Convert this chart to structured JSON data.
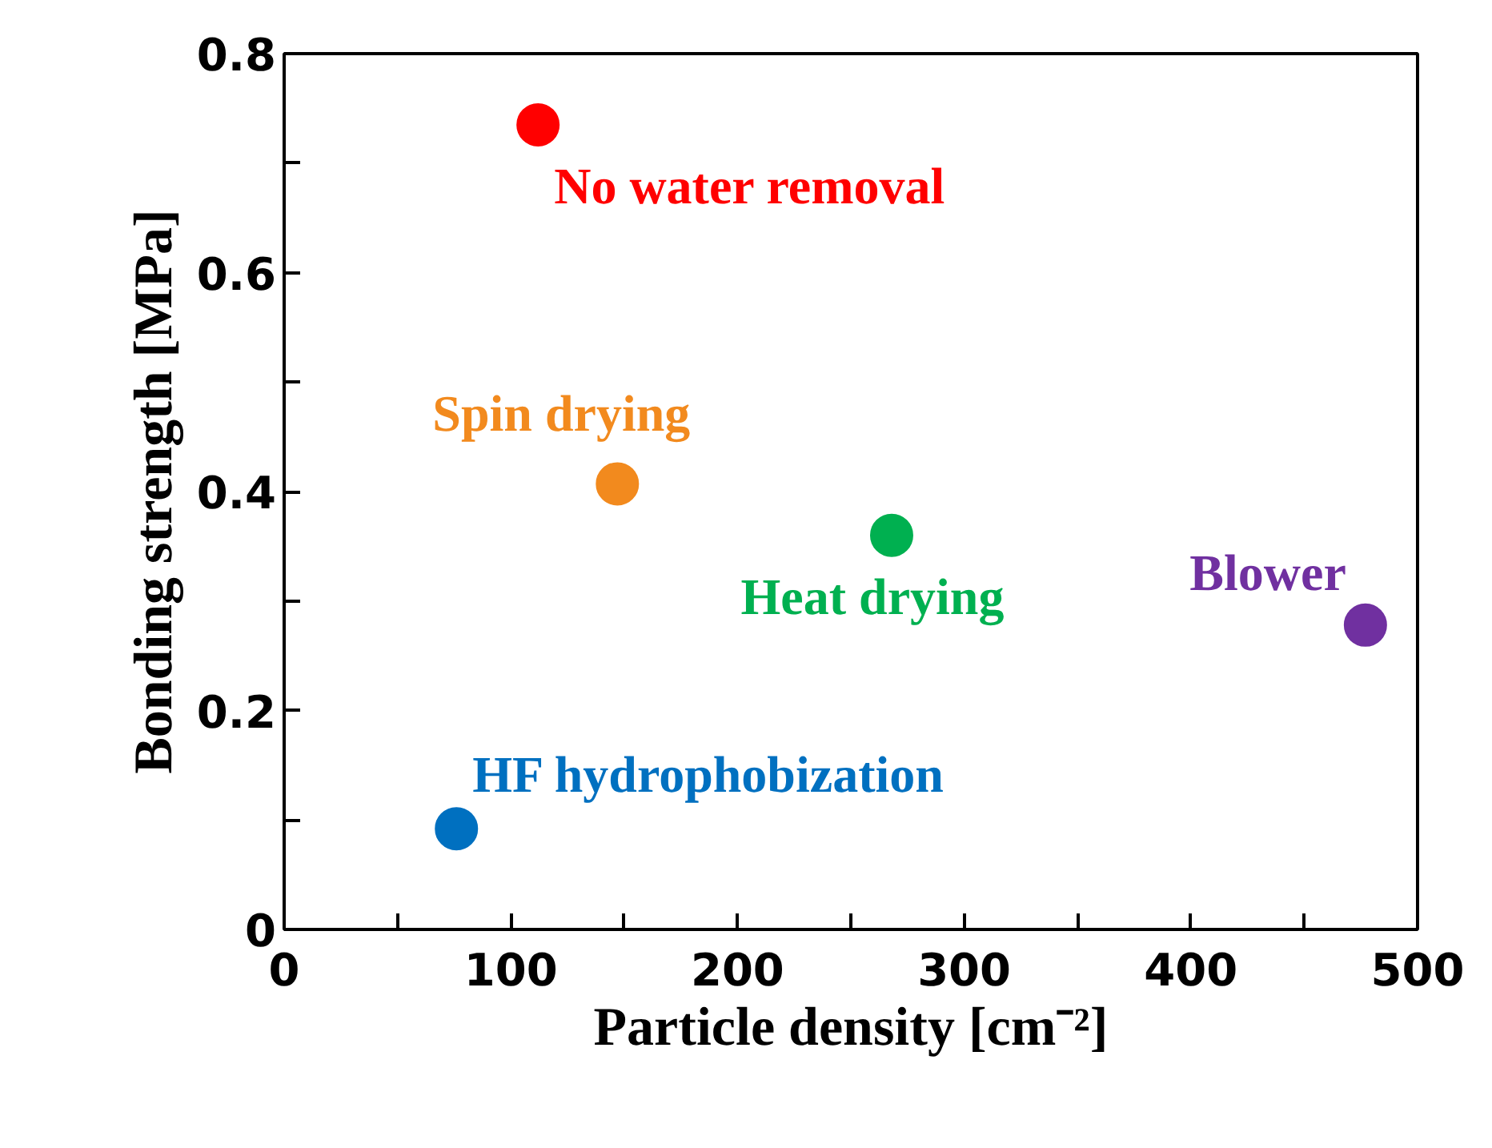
{
  "chart_data": {
    "type": "scatter",
    "xlabel": "Particle density [cm⁻²]",
    "ylabel": "Bonding strength [MPa]",
    "xlim": [
      0,
      500
    ],
    "ylim": [
      0,
      0.8
    ],
    "xticks": [
      0,
      {
        "value": 50,
        "label": null
      },
      100,
      {
        "value": 150,
        "label": null
      },
      200,
      {
        "value": 250,
        "label": null
      },
      300,
      {
        "value": 350,
        "label": null
      },
      400,
      {
        "value": 450,
        "label": null
      },
      500
    ],
    "yticks": [
      0,
      {
        "value": 0.1,
        "label": null
      },
      0.2,
      {
        "value": 0.3,
        "label": null
      },
      0.4,
      {
        "value": 0.5,
        "label": null
      },
      0.6,
      {
        "value": 0.7,
        "label": null
      },
      0.8
    ],
    "grid": false,
    "marker": "circle",
    "series": [
      {
        "name": "No water removal",
        "color": "#ff0000",
        "x": [
          112
        ],
        "values": [
          0.735
        ]
      },
      {
        "name": "Spin drying",
        "color": "#f28a1e",
        "x": [
          147
        ],
        "values": [
          0.407
        ]
      },
      {
        "name": "Heat drying",
        "color": "#00b050",
        "x": [
          268
        ],
        "values": [
          0.36
        ]
      },
      {
        "name": "Blower",
        "color": "#7030a0",
        "x": [
          477
        ],
        "values": [
          0.278
        ]
      },
      {
        "name": "HF hydrophobization",
        "color": "#0070c0",
        "x": [
          76
        ],
        "values": [
          0.092
        ]
      }
    ]
  }
}
